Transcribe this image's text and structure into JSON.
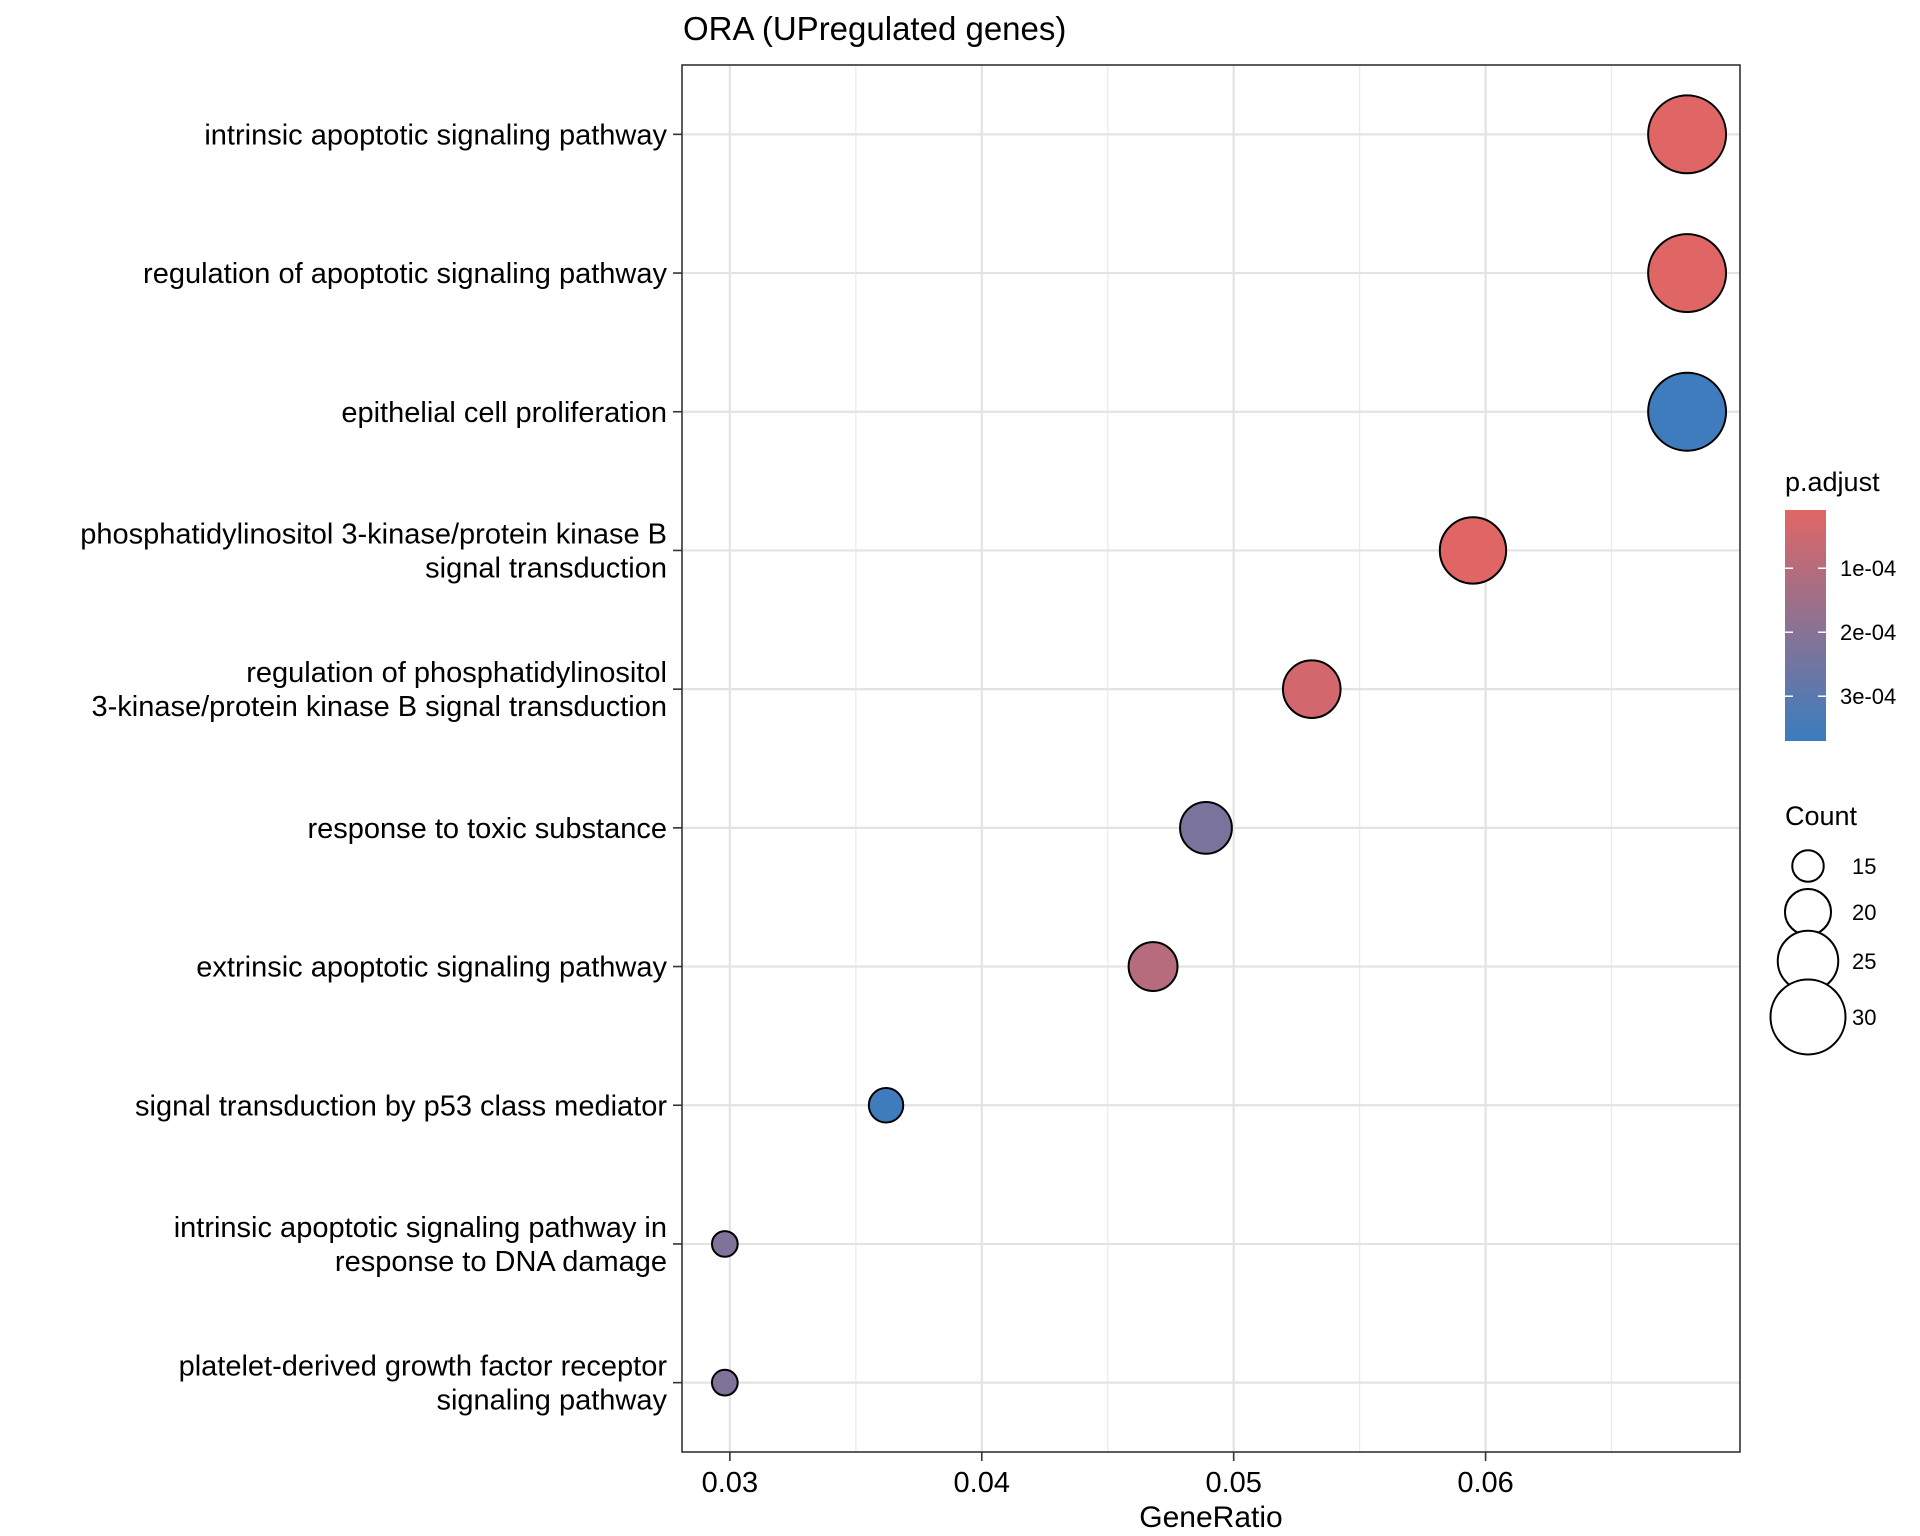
{
  "chart_data": {
    "type": "scatter",
    "title": "ORA (UPregulated genes)",
    "xlabel": "GeneRatio",
    "ylabel": "",
    "xlim": [
      0.0281,
      0.0701
    ],
    "xticks": [
      0.03,
      0.04,
      0.05,
      0.06
    ],
    "xtick_labels": [
      "0.03",
      "0.04",
      "0.05",
      "0.06"
    ],
    "grid": true,
    "categories": [
      {
        "label_lines": [
          "intrinsic apoptotic signaling pathway"
        ],
        "gene_ratio": 0.068,
        "p_adjust": 9e-06,
        "count": 31
      },
      {
        "label_lines": [
          "regulation of apoptotic signaling pathway"
        ],
        "gene_ratio": 0.068,
        "p_adjust": 9e-06,
        "count": 31
      },
      {
        "label_lines": [
          "epithelial cell proliferation"
        ],
        "gene_ratio": 0.068,
        "p_adjust": 0.00036,
        "count": 31
      },
      {
        "label_lines": [
          "phosphatidylinositol 3-kinase/protein kinase B",
          "signal transduction"
        ],
        "gene_ratio": 0.0595,
        "p_adjust": 9e-06,
        "count": 27
      },
      {
        "label_lines": [
          "regulation of phosphatidylinositol",
          "3-kinase/protein kinase B signal transduction"
        ],
        "gene_ratio": 0.0531,
        "p_adjust": 4e-05,
        "count": 24
      },
      {
        "label_lines": [
          "response to toxic substance"
        ],
        "gene_ratio": 0.0489,
        "p_adjust": 0.00023,
        "count": 22
      },
      {
        "label_lines": [
          "extrinsic apoptotic signaling pathway"
        ],
        "gene_ratio": 0.0468,
        "p_adjust": 0.0001,
        "count": 21
      },
      {
        "label_lines": [
          "signal transduction by p53 class mediator"
        ],
        "gene_ratio": 0.0362,
        "p_adjust": 0.00036,
        "count": 16
      },
      {
        "label_lines": [
          "intrinsic apoptotic signaling pathway in",
          "response to DNA damage"
        ],
        "gene_ratio": 0.0298,
        "p_adjust": 0.00022,
        "count": 13
      },
      {
        "label_lines": [
          "platelet-derived growth factor receptor",
          "signaling pathway"
        ],
        "gene_ratio": 0.0298,
        "p_adjust": 0.00022,
        "count": 13
      }
    ],
    "color_legend": {
      "title": "p.adjust",
      "range": [
        9e-06,
        0.00037
      ],
      "ticks": [
        0.0001,
        0.0002,
        0.0003
      ],
      "tick_labels": [
        "1e-04",
        "2e-04",
        "3e-04"
      ],
      "low_color": "#e06666",
      "high_color": "#3a7dbf"
    },
    "size_legend": {
      "title": "Count",
      "values": [
        15,
        20,
        25,
        30
      ],
      "labels": [
        "15",
        "20",
        "25",
        "30"
      ]
    },
    "legend_position": "right"
  }
}
